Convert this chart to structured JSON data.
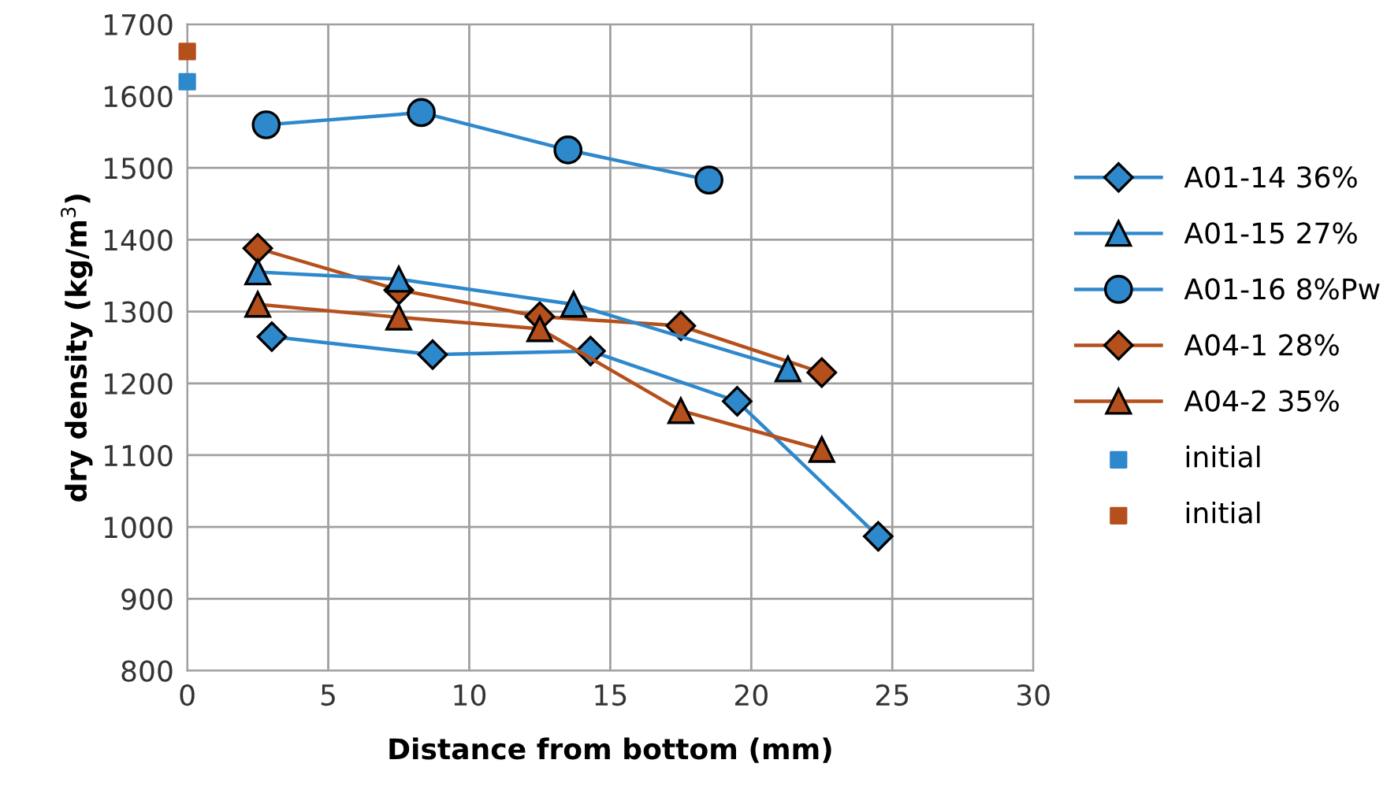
{
  "chart_data": {
    "type": "line",
    "xlabel": "Distance from bottom (mm)",
    "ylabel": "dry density (kg/m$^{3}$)",
    "xlim": [
      0,
      30
    ],
    "xticks": [
      0,
      5,
      10,
      15,
      20,
      25,
      30
    ],
    "ylim": [
      800,
      1700
    ],
    "yticks": [
      800,
      900,
      1000,
      1100,
      1200,
      1300,
      1400,
      1500,
      1600,
      1700
    ],
    "grid": true,
    "legend": "right",
    "series": [
      {
        "name": "A01-14 36%",
        "color": "#2e88cc",
        "marker": "diamond",
        "x": [
          3,
          8.7,
          14.3,
          19.5,
          24.5
        ],
        "values": [
          1265,
          1240,
          1245,
          1175,
          987
        ]
      },
      {
        "name": "A01-15 27%",
        "color": "#2e88cc",
        "marker": "triangle",
        "x": [
          2.5,
          7.5,
          13.7,
          21.3
        ],
        "values": [
          1355,
          1345,
          1310,
          1220
        ]
      },
      {
        "name": "A01-16 8%Pw",
        "color": "#2e88cc",
        "marker": "circle",
        "x": [
          2.8,
          8.3,
          13.5,
          18.5
        ],
        "values": [
          1560,
          1577,
          1525,
          1483
        ]
      },
      {
        "name": "A04-1 28%",
        "color": "#b5501c",
        "marker": "diamond",
        "x": [
          2.5,
          7.5,
          12.5,
          17.5,
          22.5
        ],
        "values": [
          1388,
          1330,
          1293,
          1280,
          1215
        ]
      },
      {
        "name": "A04-2 35%",
        "color": "#b5501c",
        "marker": "triangle",
        "x": [
          2.5,
          7.5,
          12.5,
          17.5,
          22.5
        ],
        "values": [
          1310,
          1292,
          1276,
          1162,
          1108
        ]
      },
      {
        "name": "initial",
        "type": "scatter",
        "color": "#2e88cc",
        "marker": "square",
        "x": [
          0
        ],
        "values": [
          1620
        ]
      },
      {
        "name": "initial",
        "type": "scatter",
        "color": "#b5501c",
        "marker": "square",
        "x": [
          0
        ],
        "values": [
          1662
        ]
      }
    ]
  }
}
